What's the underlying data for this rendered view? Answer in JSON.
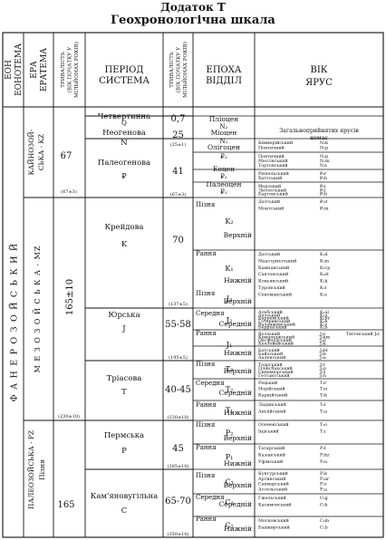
{
  "title": "Додаток Т",
  "subtitle": "Геохронологічна шкала",
  "headers": {
    "eon": [
      "ЕОН",
      "ЕОНОТЕМА"
    ],
    "era": [
      "ЕРА",
      "ЕРАТЕМА"
    ],
    "era_duration": [
      "ТРИВАЛІСТЬ",
      "(ВІК ПОЧАТКУ У",
      "МІЛЬЙОНАХ РОКІВ)"
    ],
    "period": [
      "ПЕРІОД",
      "СИСТЕМА"
    ],
    "period_duration": [
      "ТРИВАЛІСТЬ",
      "(ВІК ПОЧАТКУ У",
      "МІЛЬЙОНАХ РОКІВ)"
    ],
    "epoch": [
      "ЕПОХА",
      "ВІДДІЛ"
    ],
    "age": [
      "ВІК",
      "ЯРУС"
    ]
  },
  "eon": {
    "name": "Ф А Н Е Р О З О Й С Ь К И Й"
  },
  "eras": [
    {
      "name": "КАЙНОЗОЙ-",
      "name2": "СЬКА - KZ",
      "duration": "67",
      "start": "(67±3)"
    },
    {
      "name": "М Е З О З О Й С Ь К А - MZ",
      "duration": "165±10",
      "start": "(230±10)"
    },
    {
      "name": "ПАЛЕОЗОЙСЬКА - PZ",
      "name2": "Пізня",
      "duration": "165",
      "start": ""
    }
  ],
  "periods": [
    {
      "name": "Четвертинна",
      "index": "Q",
      "duration": "0,7",
      "start": ""
    },
    {
      "name": "Неогенова",
      "index": "N",
      "duration": "25",
      "start": "(25±1)"
    },
    {
      "name": "Палеогенова",
      "index": "₽",
      "duration": "41",
      "start": "(67±3)"
    },
    {
      "name": "Крейдова",
      "index": "K",
      "duration": "70",
      "start": "(137±5)"
    },
    {
      "name": "Юрська",
      "index": "J",
      "duration": "55-58",
      "start": "(195±5)"
    },
    {
      "name": "Тріасова",
      "index": "T",
      "duration": "40-45",
      "start": "(230±10)"
    },
    {
      "name": "Пермська",
      "index": "P",
      "duration": "45",
      "start": "(285±10)"
    },
    {
      "name": "Кам'яновугільна",
      "index": "C",
      "duration": "65-70",
      "start": "(350±10)"
    }
  ],
  "epochs": [
    {
      "name": "Пліоцен",
      "index": "N₂"
    },
    {
      "name": "Міоцен",
      "index": "N₁"
    },
    {
      "name": "Олігоцен",
      "index": "₽₃"
    },
    {
      "name": "Еоцен",
      "index": "₽₂"
    },
    {
      "name": "Палеоцен",
      "index": "₽₁"
    },
    {
      "name": "Пізня",
      "name2": "Верхній",
      "index": "K₂"
    },
    {
      "name": "Рання",
      "name2": "Нижній",
      "index": "K₁"
    },
    {
      "name": "Пізня",
      "name2": "Верхній",
      "index": "J₃"
    },
    {
      "name": "Середня",
      "name2": "Середній",
      "index": "J₂"
    },
    {
      "name": "Рання",
      "name2": "Нижній",
      "index": "J₁"
    },
    {
      "name": "Пізня",
      "name2": "Верхній",
      "index": "T₃"
    },
    {
      "name": "Середня",
      "name2": "Середній",
      "index": "T₂"
    },
    {
      "name": "Рання",
      "name2": "Нижній",
      "index": "T₁"
    },
    {
      "name": "Пізня",
      "name2": "Верхній",
      "index": "P₂"
    },
    {
      "name": "Рання",
      "name2": "Нижній",
      "index": "P₁"
    },
    {
      "name": "Пізня",
      "name2": "Верхній",
      "index": "C₃"
    },
    {
      "name": "Середня",
      "name2": "Середній",
      "index": "C₂"
    },
    {
      "name": "Рання",
      "name2": "Нижній",
      "index": "C₁"
    }
  ],
  "stage_note": [
    "Загальноприйнятих ярусів",
    "немає"
  ],
  "stage_groups": [
    {
      "rows": [
        [
          "Кіммерійський",
          "N₂k"
        ],
        [
          "Понтичний",
          "N₂p"
        ]
      ]
    },
    {
      "rows": [
        [
          "Понтичний",
          "N₁p"
        ],
        [
          "Мессінський",
          "N₁m"
        ],
        [
          "Тортонський",
          "N₁t"
        ]
      ]
    },
    {
      "rows": [
        [
          "Рюпельський",
          "₽₃r"
        ],
        [
          "Хаттський",
          "₽₃h"
        ]
      ]
    },
    {
      "rows": [
        [
          "Ипрський",
          "₽₂i"
        ],
        [
          "Лютетський",
          "₽₂l"
        ],
        [
          "Бартонський",
          "₽₂b"
        ]
      ]
    },
    {
      "rows": [
        [
          "Датський",
          "₽₁d"
        ],
        [
          "Монтський",
          "₽₁m"
        ]
      ]
    },
    {
      "rows": [
        [
          "Датський",
          "K₂d"
        ],
        [
          "Маастрихтський",
          "K₂m"
        ],
        [
          "Кампанський",
          "K₂cp"
        ],
        [
          "Сантонський",
          "K₂st"
        ],
        [
          "Коньякський",
          "K₂k"
        ],
        [
          "Туронський",
          "K₂t"
        ],
        [
          "Сеноманський",
          "K₂s"
        ]
      ]
    },
    {
      "rows": [
        [
          "Альбський",
          "K₁al"
        ],
        [
          "Аптський",
          "K₁a"
        ],
        [
          "Барремський",
          "K₁br"
        ],
        [
          "Готеривський",
          "K₁h"
        ],
        [
          "Валанжинський",
          "K₁v"
        ],
        [
          "Берріаський",
          "K₁b"
        ]
      ]
    },
    {
      "rows": [
        [
          "Волзький",
          "J₃v"
        ],
        [
          "Кімериджський",
          "J₃km"
        ],
        [
          "Оксфордський",
          "J₃o"
        ],
        [
          "Келловейський",
          "J₃k"
        ]
      ],
      "extra": "Титонський    J₃t"
    },
    {
      "rows": [
        [
          "Батський",
          "J₂bt"
        ],
        [
          "Байоський",
          "J₂b"
        ],
        [
          "Ааленський",
          "J₂a"
        ]
      ]
    },
    {
      "rows": [
        [
          "Тоарський",
          "J₁t"
        ],
        [
          "Плінсбахський",
          "J₁p"
        ],
        [
          "Синемюрський",
          "J₁s"
        ],
        [
          "Геттангський",
          "J₁h"
        ]
      ]
    },
    {
      "rows": [
        [
          "Рецький",
          "T₃r"
        ],
        [
          "Норійський",
          "T₃n"
        ],
        [
          "Карнійський",
          "T₃k"
        ]
      ]
    },
    {
      "rows": [
        [
          "Ладинський",
          "T₂l"
        ],
        [
          "Анізійський",
          "T₂a"
        ]
      ]
    },
    {
      "rows": [
        [
          "Оленекський",
          "T₁o"
        ],
        [
          "Індський",
          "T₁i"
        ]
      ]
    },
    {
      "rows": [
        [
          "Татарський",
          "P₂t"
        ],
        [
          "Казанський",
          "P₂kz"
        ],
        [
          "Уфімський",
          "P₂u"
        ]
      ]
    },
    {
      "rows": [
        [
          "Кунгурський",
          "P₁k"
        ],
        [
          "Артинський",
          "P₁ar"
        ],
        [
          "Сакмарський",
          "P₁s"
        ],
        [
          "Ассельський",
          "P₁a"
        ]
      ]
    },
    {
      "rows": [
        [
          "Гжельський",
          "C₃g"
        ],
        [
          "Касимовський",
          "C₃k"
        ]
      ]
    },
    {
      "rows": [
        [
          "Московський",
          "C₂m"
        ],
        [
          "Башкирський",
          "C₂b"
        ]
      ]
    },
    {
      "rows": [
        [
          "Серпуховський",
          "C₁s"
        ],
        [
          "Візейський",
          "C₁v"
        ],
        [
          "Турнейський",
          "C₁t"
        ]
      ]
    }
  ]
}
